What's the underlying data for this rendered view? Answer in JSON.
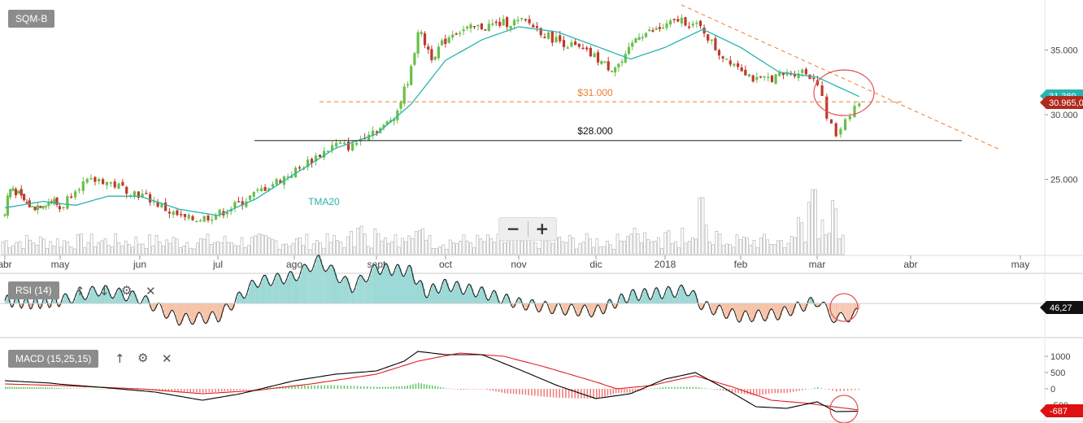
{
  "ticker": "SQM-B",
  "zoom": {
    "minus": "−",
    "plus": "+"
  },
  "rsi": {
    "label": "RSI (14)",
    "value_tag": "46,27"
  },
  "macd": {
    "label": "MACD (15,25,15)",
    "value_tag": "-687"
  },
  "icons": {
    "up": "arrow-up-icon",
    "down": "arrow-down-icon",
    "settings": "gear-icon",
    "close": "close-icon"
  },
  "colors": {
    "up_candle": "#6abf4b",
    "down_candle": "#c0392b",
    "tma": "#29b4b0",
    "support": "#333333",
    "resistance": "#f07c33",
    "rsi_fill_high": "#9dd9d6",
    "rsi_fill_low": "#f6c3a8",
    "macd_line": "#000000",
    "signal_line": "#e02020",
    "hist_pos": "#66c96a",
    "hist_neg": "#f08080",
    "circle": "#e05050"
  },
  "chart_data": [
    {
      "type": "candlestick",
      "title": "SQM-B",
      "x_ticks": [
        "abr",
        "may",
        "jun",
        "jul",
        "ago",
        "sept",
        "oct",
        "nov",
        "dic",
        "2018",
        "feb",
        "mar",
        "abr",
        "may"
      ],
      "y_ticks": [
        25000,
        30000,
        35000
      ],
      "y_tick_labels": [
        "25.000",
        "30.000",
        "35.000"
      ],
      "ylim": [
        21500,
        38000
      ],
      "close_series": [
        {
          "t": 0,
          "v": 22300
        },
        {
          "t": 0.05,
          "v": 23700
        },
        {
          "t": 0.12,
          "v": 24500
        },
        {
          "t": 0.3,
          "v": 23500
        },
        {
          "t": 0.5,
          "v": 22800
        },
        {
          "t": 0.7,
          "v": 23200
        },
        {
          "t": 0.9,
          "v": 23300
        },
        {
          "t": 1.0,
          "v": 22700
        },
        {
          "t": 1.2,
          "v": 24500
        },
        {
          "t": 1.5,
          "v": 25000
        },
        {
          "t": 1.8,
          "v": 24300
        },
        {
          "t": 2.1,
          "v": 23600
        },
        {
          "t": 2.4,
          "v": 22400
        },
        {
          "t": 2.6,
          "v": 21900
        },
        {
          "t": 2.8,
          "v": 22000
        },
        {
          "t": 3.0,
          "v": 22300
        },
        {
          "t": 3.3,
          "v": 23200
        },
        {
          "t": 3.6,
          "v": 24300
        },
        {
          "t": 4.0,
          "v": 25600
        },
        {
          "t": 4.3,
          "v": 26900
        },
        {
          "t": 4.5,
          "v": 27700
        },
        {
          "t": 4.7,
          "v": 27500
        },
        {
          "t": 4.9,
          "v": 28700
        },
        {
          "t": 5.1,
          "v": 29000
        },
        {
          "t": 5.3,
          "v": 30300
        },
        {
          "t": 5.5,
          "v": 33400
        },
        {
          "t": 5.6,
          "v": 36600
        },
        {
          "t": 5.8,
          "v": 34500
        },
        {
          "t": 6.1,
          "v": 36400
        },
        {
          "t": 6.4,
          "v": 36700
        },
        {
          "t": 6.8,
          "v": 37100
        },
        {
          "t": 7.1,
          "v": 37200
        },
        {
          "t": 7.4,
          "v": 36000
        },
        {
          "t": 7.7,
          "v": 35300
        },
        {
          "t": 8.0,
          "v": 34400
        },
        {
          "t": 8.2,
          "v": 33600
        },
        {
          "t": 8.4,
          "v": 34100
        },
        {
          "t": 8.6,
          "v": 36200
        },
        {
          "t": 8.8,
          "v": 36400
        },
        {
          "t": 9.0,
          "v": 36800
        },
        {
          "t": 9.2,
          "v": 37400
        },
        {
          "t": 9.5,
          "v": 36600
        },
        {
          "t": 9.7,
          "v": 34800
        },
        {
          "t": 10.0,
          "v": 33700
        },
        {
          "t": 10.2,
          "v": 32600
        },
        {
          "t": 10.5,
          "v": 33000
        },
        {
          "t": 10.8,
          "v": 33400
        },
        {
          "t": 11.0,
          "v": 32700
        },
        {
          "t": 11.1,
          "v": 29800
        },
        {
          "t": 11.2,
          "v": 28400
        },
        {
          "t": 11.3,
          "v": 29700
        },
        {
          "t": 11.4,
          "v": 30600
        },
        {
          "t": 11.45,
          "v": 30965
        }
      ],
      "tma20": [
        {
          "t": 0,
          "v": 22800
        },
        {
          "t": 0.7,
          "v": 23300
        },
        {
          "t": 1.2,
          "v": 23000
        },
        {
          "t": 1.6,
          "v": 23700
        },
        {
          "t": 2.0,
          "v": 23700
        },
        {
          "t": 2.5,
          "v": 22700
        },
        {
          "t": 3.0,
          "v": 22200
        },
        {
          "t": 3.5,
          "v": 23500
        },
        {
          "t": 4.0,
          "v": 25400
        },
        {
          "t": 4.5,
          "v": 27400
        },
        {
          "t": 5.0,
          "v": 28500
        },
        {
          "t": 5.5,
          "v": 30800
        },
        {
          "t": 6.0,
          "v": 34200
        },
        {
          "t": 6.5,
          "v": 35800
        },
        {
          "t": 7.0,
          "v": 36800
        },
        {
          "t": 7.5,
          "v": 36400
        },
        {
          "t": 8.0,
          "v": 35300
        },
        {
          "t": 8.5,
          "v": 34300
        },
        {
          "t": 9.0,
          "v": 35200
        },
        {
          "t": 9.5,
          "v": 36600
        },
        {
          "t": 10.0,
          "v": 35200
        },
        {
          "t": 10.5,
          "v": 33300
        },
        {
          "t": 11.0,
          "v": 32900
        },
        {
          "t": 11.45,
          "v": 31400
        }
      ],
      "annotations": [
        {
          "label": "$31.000",
          "y": 31000,
          "style": "dashed"
        },
        {
          "label": "$28.000",
          "y": 28000,
          "style": "solid"
        },
        {
          "label": "TMA20",
          "series": "tma20"
        }
      ],
      "price_tags": [
        "30.965,0",
        "31.389"
      ],
      "volume_bars": "unlabeled relative volume"
    },
    {
      "type": "line",
      "title": "RSI (14)",
      "baseline": 50,
      "last_value": 46.27,
      "series": [
        {
          "t": 0,
          "v": 51
        },
        {
          "t": 0.5,
          "v": 50
        },
        {
          "t": 1.0,
          "v": 51
        },
        {
          "t": 1.5,
          "v": 55
        },
        {
          "t": 2.0,
          "v": 52
        },
        {
          "t": 2.5,
          "v": 44
        },
        {
          "t": 3.0,
          "v": 45
        },
        {
          "t": 3.5,
          "v": 58
        },
        {
          "t": 4.0,
          "v": 60
        },
        {
          "t": 4.3,
          "v": 66
        },
        {
          "t": 4.7,
          "v": 56
        },
        {
          "t": 5.0,
          "v": 63
        },
        {
          "t": 5.5,
          "v": 62
        },
        {
          "t": 5.7,
          "v": 54
        },
        {
          "t": 6.0,
          "v": 57
        },
        {
          "t": 6.5,
          "v": 54
        },
        {
          "t": 7.0,
          "v": 50
        },
        {
          "t": 7.5,
          "v": 48
        },
        {
          "t": 8.0,
          "v": 47
        },
        {
          "t": 8.5,
          "v": 53
        },
        {
          "t": 9.0,
          "v": 54
        },
        {
          "t": 9.3,
          "v": 55
        },
        {
          "t": 9.5,
          "v": 49
        },
        {
          "t": 10.0,
          "v": 45
        },
        {
          "t": 10.5,
          "v": 46
        },
        {
          "t": 11.0,
          "v": 51
        },
        {
          "t": 11.2,
          "v": 44
        },
        {
          "t": 11.45,
          "v": 46.27
        }
      ]
    },
    {
      "type": "line",
      "title": "MACD (15,25,15)",
      "y_ticks": [
        -500,
        0,
        500,
        1000
      ],
      "y_tick_labels": [
        "-500",
        "0",
        "500",
        "1000"
      ],
      "last_value": -687,
      "macd": [
        {
          "t": 0,
          "v": 250
        },
        {
          "t": 0.8,
          "v": 180
        },
        {
          "t": 1.5,
          "v": 50
        },
        {
          "t": 2.2,
          "v": -100
        },
        {
          "t": 2.8,
          "v": -350
        },
        {
          "t": 3.3,
          "v": -150
        },
        {
          "t": 4.0,
          "v": 250
        },
        {
          "t": 4.5,
          "v": 450
        },
        {
          "t": 5.0,
          "v": 550
        },
        {
          "t": 5.4,
          "v": 850
        },
        {
          "t": 5.6,
          "v": 1150
        },
        {
          "t": 6.0,
          "v": 1050
        },
        {
          "t": 6.5,
          "v": 1050
        },
        {
          "t": 7.0,
          "v": 600
        },
        {
          "t": 7.5,
          "v": 100
        },
        {
          "t": 8.0,
          "v": -300
        },
        {
          "t": 8.5,
          "v": -150
        },
        {
          "t": 9.0,
          "v": 300
        },
        {
          "t": 9.4,
          "v": 500
        },
        {
          "t": 9.8,
          "v": 0
        },
        {
          "t": 10.2,
          "v": -550
        },
        {
          "t": 10.6,
          "v": -600
        },
        {
          "t": 11.0,
          "v": -400
        },
        {
          "t": 11.2,
          "v": -700
        },
        {
          "t": 11.45,
          "v": -687
        }
      ],
      "signal": [
        {
          "t": 0,
          "v": 150
        },
        {
          "t": 1.0,
          "v": 100
        },
        {
          "t": 2.0,
          "v": 0
        },
        {
          "t": 2.8,
          "v": -150
        },
        {
          "t": 3.5,
          "v": -50
        },
        {
          "t": 4.2,
          "v": 150
        },
        {
          "t": 5.0,
          "v": 450
        },
        {
          "t": 5.6,
          "v": 850
        },
        {
          "t": 6.2,
          "v": 1100
        },
        {
          "t": 6.8,
          "v": 1000
        },
        {
          "t": 7.3,
          "v": 700
        },
        {
          "t": 7.8,
          "v": 350
        },
        {
          "t": 8.3,
          "v": 0
        },
        {
          "t": 8.8,
          "v": 100
        },
        {
          "t": 9.4,
          "v": 400
        },
        {
          "t": 9.9,
          "v": 50
        },
        {
          "t": 10.4,
          "v": -350
        },
        {
          "t": 10.9,
          "v": -450
        },
        {
          "t": 11.45,
          "v": -650
        }
      ]
    }
  ]
}
